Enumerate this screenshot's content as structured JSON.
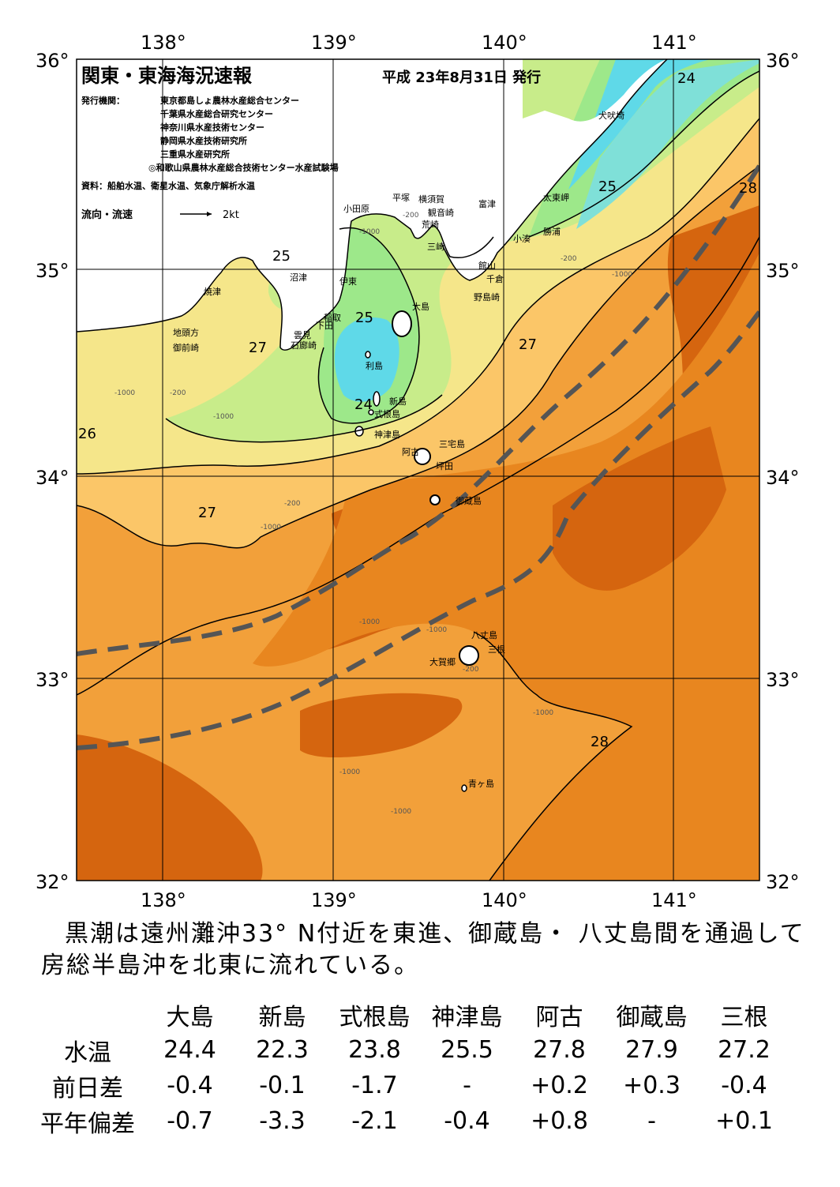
{
  "header": {
    "title": "関東・東海海況速報",
    "date": "平成 23年8月31日 発行",
    "publisher_label": "発行機関：",
    "publishers": [
      "東京都島しょ農林水産総合センター",
      "千葉県水産総合研究センター",
      "神奈川県水産技術センター",
      "静岡県水産技術研究所",
      "三重県水産研究所",
      "◎和歌山県農林水産総合技術センター水産試験場"
    ],
    "source": "資料：船舶水温、衛星水温、気象庁解析水温",
    "flow_legend": "流向・流速",
    "flow_scale": "2kt"
  },
  "axes": {
    "lon_labels": [
      "138°",
      "139°",
      "140°",
      "141°"
    ],
    "lat_labels": [
      "36°",
      "35°",
      "34°",
      "33°",
      "32°"
    ]
  },
  "isotherm_labels": [
    "24",
    "25",
    "25",
    "25",
    "27",
    "27",
    "24",
    "26",
    "27",
    "28",
    "28"
  ],
  "depth_labels": [
    "-1000",
    "-200"
  ],
  "place_names": {
    "inubosaki": "犬吠埼",
    "taitomisaki": "太東岬",
    "katsuura": "勝浦",
    "kominato": "小湊",
    "futtsu": "富津",
    "yokosuka": "横須賀",
    "kannonzaki": "観音崎",
    "hiratsuka": "平塚",
    "odawara": "小田原",
    "arasaki": "荒崎",
    "misaki": "三崎",
    "tateyama": "館山",
    "chikura": "千倉",
    "nojimazaki": "野島崎",
    "numazu": "沼津",
    "yaizu": "焼津",
    "ito": "伊東",
    "inatori": "稲取",
    "shimoda": "下田",
    "kumomi": "雲見",
    "irozaki": "石廊崎",
    "oshima": "大島",
    "toshima": "利島",
    "niijima": "新島",
    "shikinejima": "式根島",
    "kozushima": "神津島",
    "miyakejima": "三宅島",
    "ako": "阿古",
    "tsubota": "坪田",
    "mikurajima": "御蔵島",
    "hachijojima": "八丈島",
    "mitsune": "三根",
    "okago": "大賀郷",
    "aogashima": "青ヶ島",
    "jitogata": "地頭方",
    "omaezaki": "御前崎"
  },
  "summary": [
    "黒潮は遠州灘沖33° N付近を東進、御蔵島・ 八丈島間を通過して",
    "房総半島沖を北東に流れている。"
  ],
  "table": {
    "columns": [
      "大島",
      "新島",
      "式根島",
      "神津島",
      "阿古",
      "御蔵島",
      "三根"
    ],
    "rows": [
      {
        "label": "水温",
        "values": [
          "24.4",
          "22.3",
          "23.8",
          "25.5",
          "27.8",
          "27.9",
          "27.2"
        ]
      },
      {
        "label": "前日差",
        "values": [
          "-0.4",
          "-0.1",
          "-1.7",
          "-",
          "+0.2",
          "+0.3",
          "-0.4"
        ]
      },
      {
        "label": "平年偏差",
        "values": [
          "-0.7",
          "-3.3",
          "-2.1",
          "-0.4",
          "+0.8",
          "-",
          "+0.1"
        ]
      }
    ]
  },
  "colors": {
    "t22": "#5fd9e8",
    "t24": "#9de88a",
    "t25": "#c8ec8a",
    "t26": "#f5e68a",
    "t27": "#fbc668",
    "t28": "#f2a03a",
    "t28_5": "#e8861f",
    "t29": "#d5650f",
    "land": "#ffffff",
    "kuroshio": "#555555"
  }
}
